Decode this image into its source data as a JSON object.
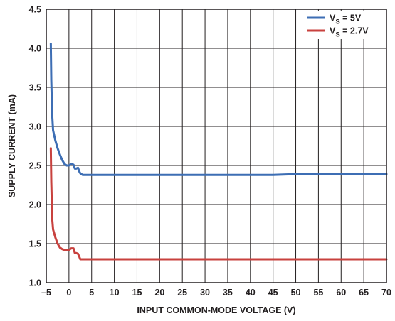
{
  "chart_data": {
    "type": "line",
    "title": "",
    "xlabel": "INPUT COMMON-MODE VOLTAGE (V)",
    "ylabel": "SUPPLY CURRENT (mA)",
    "xlim": [
      -5,
      70
    ],
    "ylim": [
      1.0,
      4.5
    ],
    "x_ticks": [
      -5,
      0,
      5,
      10,
      15,
      20,
      25,
      30,
      35,
      40,
      45,
      50,
      55,
      60,
      65,
      70
    ],
    "x_tick_labels": [
      "–5",
      "0",
      "5",
      "10",
      "15",
      "20",
      "25",
      "30",
      "35",
      "40",
      "45",
      "50",
      "55",
      "60",
      "65",
      "70"
    ],
    "y_ticks": [
      1.0,
      1.5,
      2.0,
      2.5,
      3.0,
      3.5,
      4.0,
      4.5
    ],
    "y_tick_labels": [
      "1.0",
      "1.5",
      "2.0",
      "2.5",
      "3.0",
      "3.5",
      "4.0",
      "4.5"
    ],
    "grid": true,
    "legend_position": "top-right",
    "series": [
      {
        "name": "V_S = 5V",
        "legend": {
          "main": "V",
          "sub": "S",
          "rest": " = 5V"
        },
        "color": "#3d6eb4",
        "x": [
          -4.0,
          -3.9,
          -3.7,
          -3.5,
          -3.0,
          -2.5,
          -2.0,
          -1.5,
          -1.0,
          -0.5,
          0.0,
          0.5,
          1.0,
          1.3,
          1.6,
          2.0,
          2.3,
          2.5,
          3.0,
          3.5,
          4.0,
          5,
          10,
          20,
          30,
          40,
          45,
          50,
          55,
          60,
          65,
          70
        ],
        "y": [
          4.06,
          3.6,
          3.15,
          2.95,
          2.82,
          2.72,
          2.64,
          2.57,
          2.52,
          2.5,
          2.5,
          2.52,
          2.51,
          2.46,
          2.46,
          2.47,
          2.42,
          2.4,
          2.38,
          2.38,
          2.38,
          2.38,
          2.38,
          2.38,
          2.38,
          2.38,
          2.38,
          2.39,
          2.39,
          2.39,
          2.39,
          2.39
        ]
      },
      {
        "name": "V_S = 2.7V",
        "legend": {
          "main": "V",
          "sub": "S",
          "rest": " = 2.7V"
        },
        "color": "#c8413e",
        "x": [
          -4.0,
          -3.9,
          -3.7,
          -3.5,
          -3.0,
          -2.5,
          -2.0,
          -1.5,
          -1.0,
          -0.5,
          0.0,
          0.5,
          1.0,
          1.3,
          1.6,
          2.0,
          2.3,
          2.5,
          3.0,
          4.0,
          5,
          10,
          20,
          30,
          40,
          50,
          60,
          70
        ],
        "y": [
          2.72,
          2.3,
          1.82,
          1.68,
          1.58,
          1.5,
          1.45,
          1.43,
          1.42,
          1.42,
          1.42,
          1.44,
          1.44,
          1.38,
          1.38,
          1.37,
          1.33,
          1.3,
          1.3,
          1.3,
          1.3,
          1.3,
          1.3,
          1.3,
          1.3,
          1.3,
          1.3,
          1.3
        ]
      }
    ]
  }
}
